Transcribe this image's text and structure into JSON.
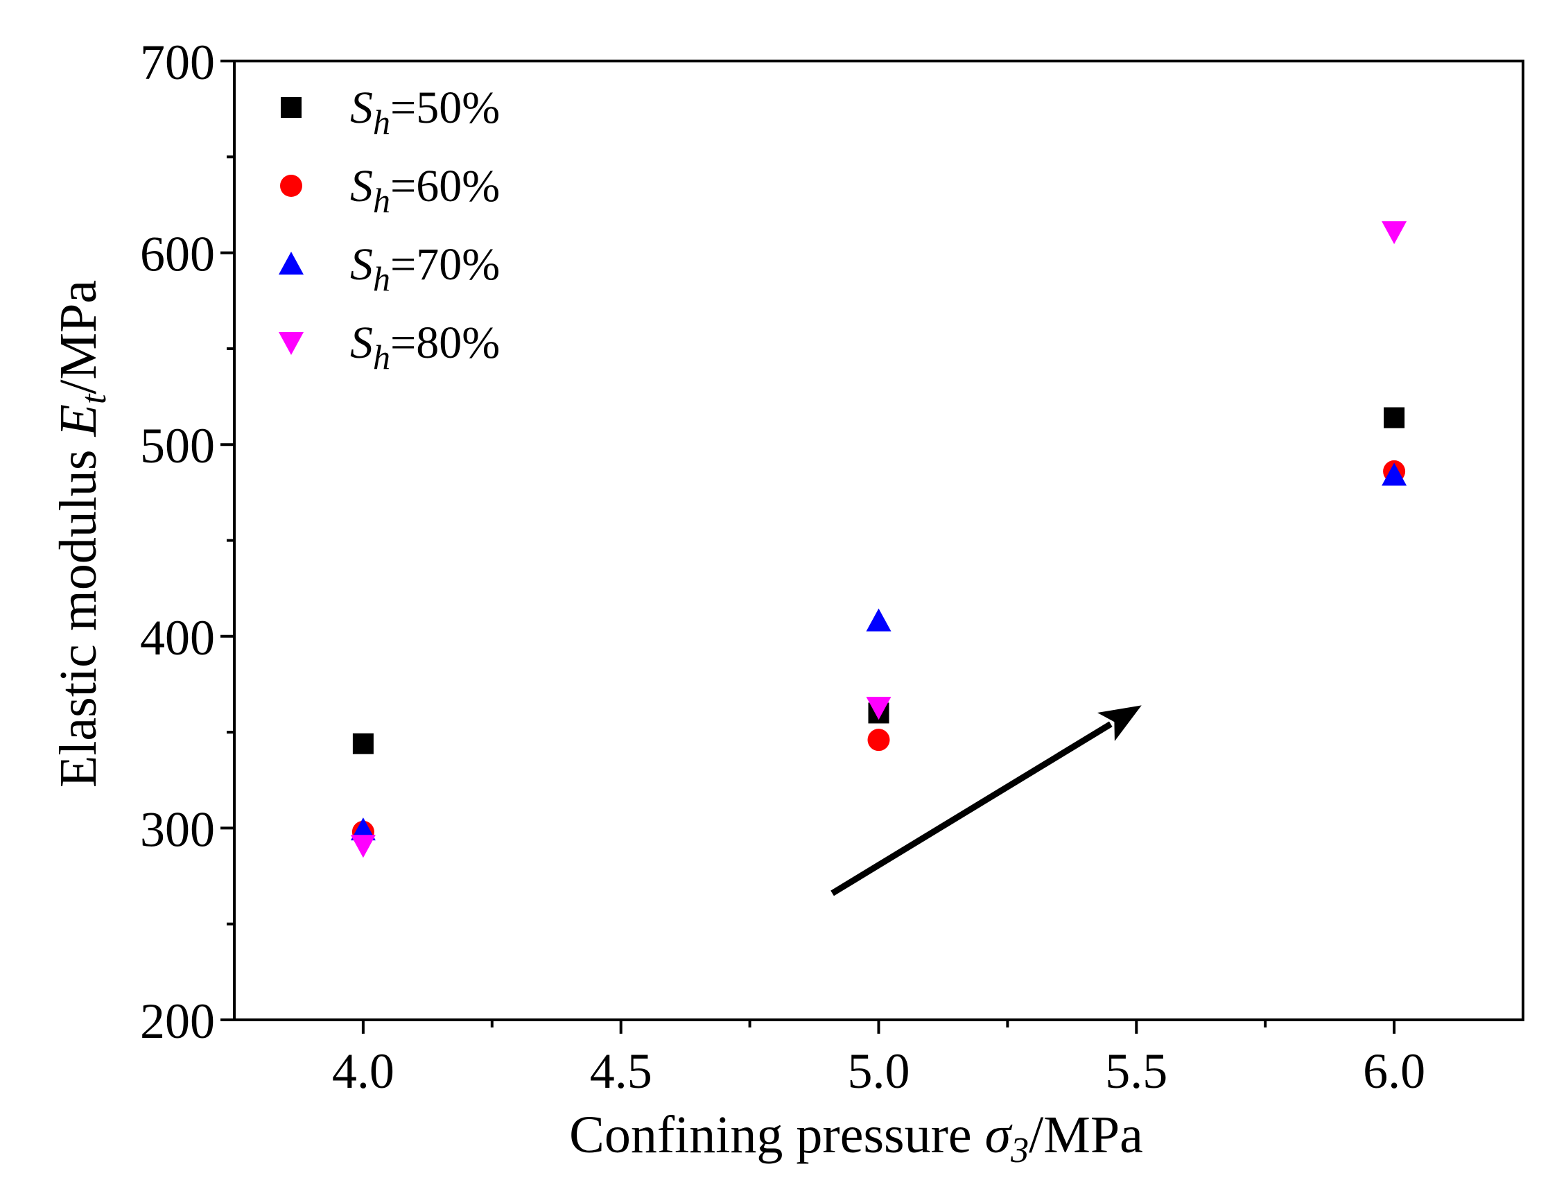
{
  "chart_data": {
    "type": "scatter",
    "xlabel_text": "Confining pressure ",
    "xlabel_symbol": "σ",
    "xlabel_subscript": "3",
    "xlabel_unit": "/MPa",
    "ylabel_text": "Elastic modulus ",
    "ylabel_symbol": "E",
    "ylabel_subscript": "t",
    "ylabel_unit": "/MPa",
    "xlim": [
      3.75,
      6.25
    ],
    "ylim": [
      200,
      700
    ],
    "x_ticks": [
      {
        "value": 4.0,
        "label": "4.0"
      },
      {
        "value": 4.5,
        "label": "4.5"
      },
      {
        "value": 5.0,
        "label": "5.0"
      },
      {
        "value": 5.5,
        "label": "5.5"
      },
      {
        "value": 6.0,
        "label": "6.0"
      }
    ],
    "x_minor_ticks": [
      4.25,
      4.75,
      5.25,
      5.75
    ],
    "y_ticks": [
      {
        "value": 200,
        "label": "200"
      },
      {
        "value": 300,
        "label": "300"
      },
      {
        "value": 400,
        "label": "400"
      },
      {
        "value": 500,
        "label": "500"
      },
      {
        "value": 600,
        "label": "600"
      },
      {
        "value": 700,
        "label": "700"
      }
    ],
    "y_minor_ticks": [
      250,
      350,
      450,
      550,
      650
    ],
    "legend_position": "top-left",
    "series": [
      {
        "name_symbol": "S",
        "name_subscript": "h",
        "name_suffix": "=50%",
        "marker": "square",
        "color": "#000000",
        "x": [
          4.0,
          5.0,
          6.0
        ],
        "y": [
          344,
          360,
          514
        ]
      },
      {
        "name_symbol": "S",
        "name_subscript": "h",
        "name_suffix": "=60%",
        "marker": "circle",
        "color": "#ff0000",
        "x": [
          4.0,
          5.0,
          6.0
        ],
        "y": [
          298,
          346,
          486
        ]
      },
      {
        "name_symbol": "S",
        "name_subscript": "h",
        "name_suffix": "=70%",
        "marker": "triangle-up",
        "color": "#0000ff",
        "x": [
          4.0,
          5.0,
          6.0
        ],
        "y": [
          299,
          408,
          484
        ]
      },
      {
        "name_symbol": "S",
        "name_subscript": "h",
        "name_suffix": "=80%",
        "marker": "triangle-down",
        "color": "#ff00ff",
        "x": [
          4.0,
          5.0,
          6.0
        ],
        "y": [
          291,
          363,
          611
        ]
      }
    ],
    "annotation_arrow": {
      "from": [
        4.91,
        266
      ],
      "to": [
        5.51,
        364
      ],
      "color": "#000000"
    }
  }
}
